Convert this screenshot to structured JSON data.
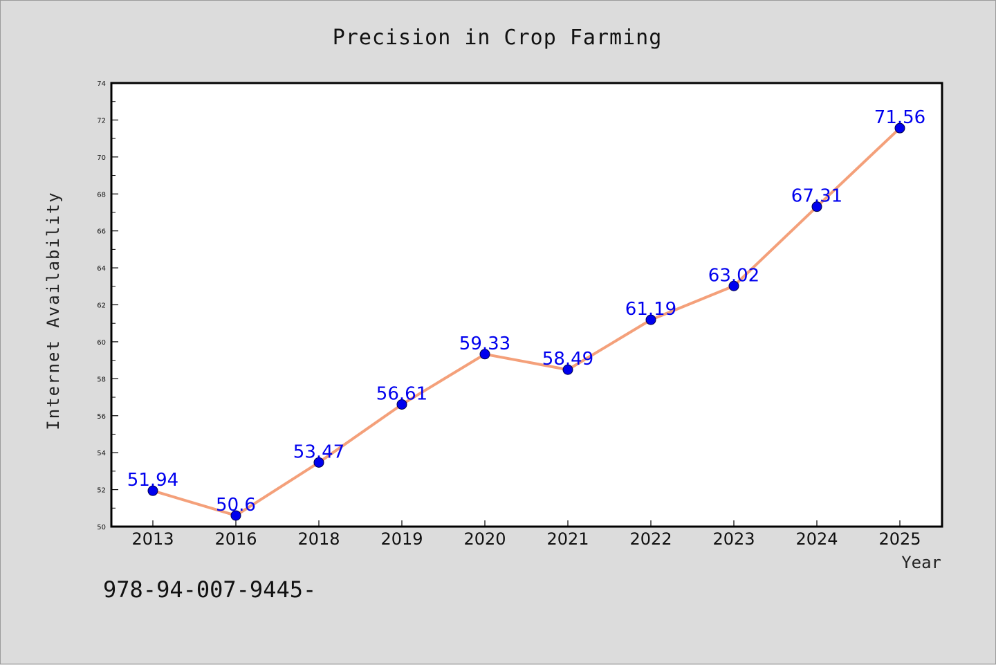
{
  "chart_data": {
    "type": "line",
    "title": "Precision in Crop Farming",
    "xlabel": "Year",
    "ylabel": "Internet Availability",
    "categories": [
      "2013",
      "2016",
      "2018",
      "2019",
      "2020",
      "2021",
      "2022",
      "2023",
      "2024",
      "2025"
    ],
    "series": [
      {
        "values": [
          51.94,
          50.6,
          53.47,
          56.61,
          59.33,
          58.49,
          61.19,
          63.02,
          67.31,
          71.56
        ],
        "labels": [
          "51.94",
          "50.6",
          "53.47",
          "56.61",
          "59.33",
          "58.49",
          "61.19",
          "63.02",
          "67.31",
          "71.56"
        ],
        "line_color": "#f4a07a",
        "marker_color": "#0000ee"
      }
    ],
    "ylim": [
      50,
      74
    ],
    "yticks": [
      50,
      52,
      54,
      56,
      58,
      60,
      62,
      64,
      66,
      68,
      70,
      72,
      74
    ],
    "grid": false,
    "legend": "none"
  },
  "footer_note": "978-94-007-9445-"
}
